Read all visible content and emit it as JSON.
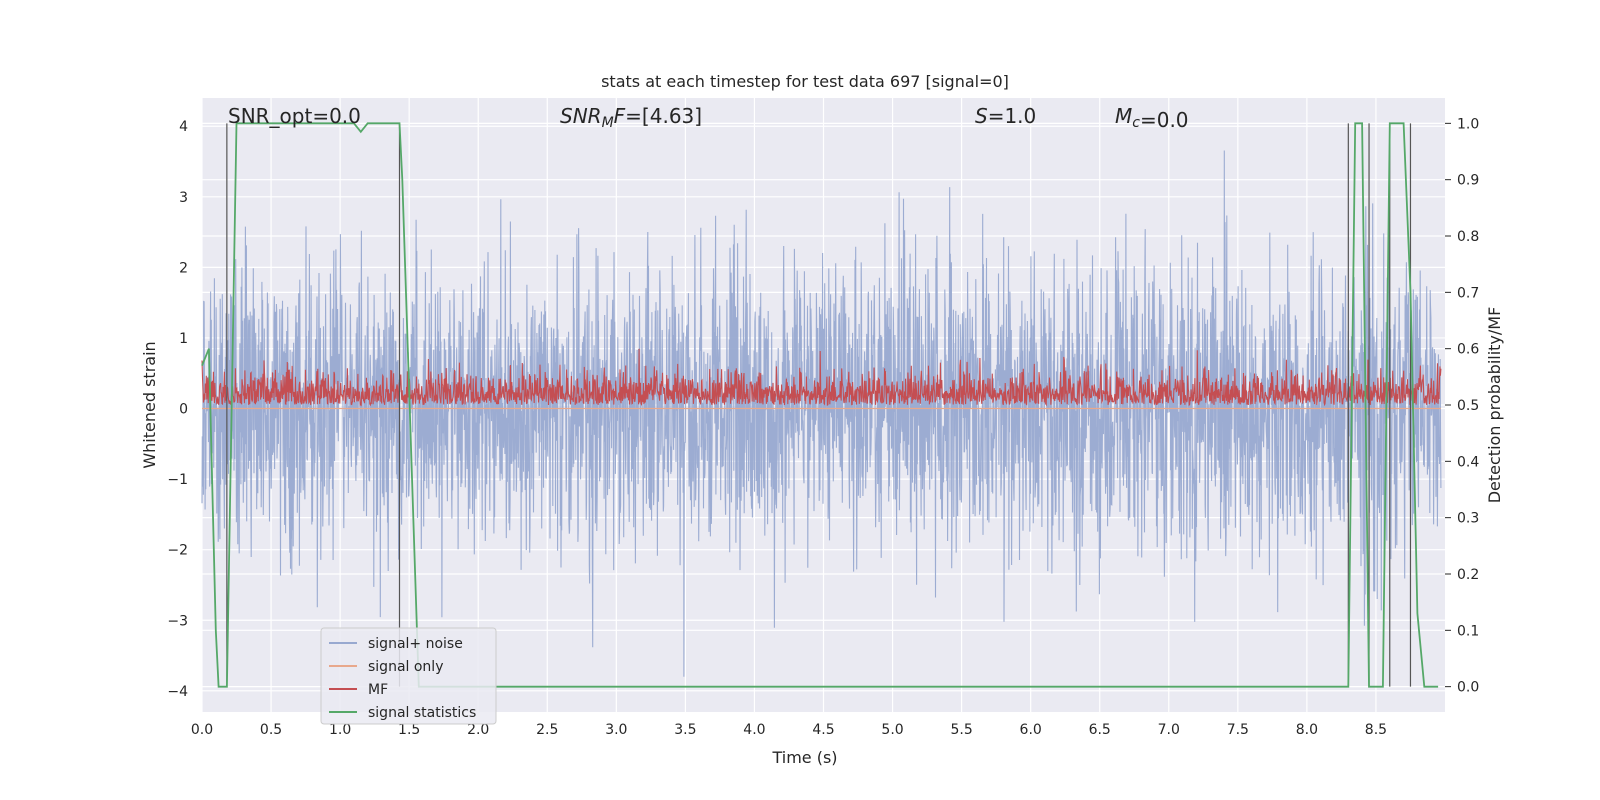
{
  "chart_data": {
    "type": "line",
    "title": "stats at each timestep for test data 697 [signal=0]",
    "xlabel": "Time (s)",
    "ylabel_left": "Whitened strain",
    "ylabel_right": "Detection probability/MF",
    "xlim": [
      0.0,
      9.0
    ],
    "ylim_left": [
      -4.3,
      4.4
    ],
    "ylim_right": [
      -0.045,
      1.045
    ],
    "x_ticks": [
      "0.0",
      "0.5",
      "1.0",
      "1.5",
      "2.0",
      "2.5",
      "3.0",
      "3.5",
      "4.0",
      "4.5",
      "5.0",
      "5.5",
      "6.0",
      "6.5",
      "7.0",
      "7.5",
      "8.0",
      "8.5"
    ],
    "y_left_ticks": [
      "4",
      "3",
      "2",
      "1",
      "0",
      "−1",
      "−2",
      "−3",
      "−4"
    ],
    "y_right_ticks": [
      "1.0",
      "0.9",
      "0.8",
      "0.7",
      "0.6",
      "0.5",
      "0.4",
      "0.3",
      "0.2",
      "0.1",
      "0.0"
    ],
    "grid": true,
    "legend_position": "lower-left",
    "annotations": [
      {
        "prefix": "SNR_opt",
        "value": "=0.0"
      },
      {
        "prefix": "SNR",
        "sub": "M",
        "suffix": "F",
        "value": "=[4.63]"
      },
      {
        "prefix": "S",
        "value": "=1.0"
      },
      {
        "prefix": "M",
        "sub": "c",
        "value": "=0.0"
      }
    ],
    "series": [
      {
        "name": "signal+ noise",
        "color": "#98a9d0",
        "axis": "left",
        "description_stats": {
          "amplitude_sigma": 1.0,
          "min": -3.8,
          "max": 4.0
        }
      },
      {
        "name": "signal only",
        "color": "#e8a88c",
        "axis": "left",
        "values": [
          0.0
        ]
      },
      {
        "name": "MF",
        "color": "#c44e52",
        "axis": "right",
        "baseline": 0.5,
        "max": 0.6
      },
      {
        "name": "signal statistics",
        "color": "#55a868",
        "axis": "right",
        "x": [
          0.0,
          0.05,
          0.1,
          0.12,
          0.18,
          0.25,
          1.1,
          1.15,
          1.2,
          1.43,
          1.45,
          1.57,
          8.3,
          8.35,
          8.4,
          8.45,
          8.55,
          8.6,
          8.65,
          8.7,
          8.75,
          8.8,
          8.85,
          8.9,
          8.95
        ],
        "y": [
          0.57,
          0.6,
          0.1,
          0.0,
          0.0,
          1.0,
          1.0,
          0.985,
          1.0,
          1.0,
          0.9,
          0.0,
          0.0,
          1.0,
          1.0,
          0.0,
          0.0,
          1.0,
          1.0,
          1.0,
          0.7,
          0.13,
          0.0,
          0.0,
          0.0
        ]
      }
    ],
    "vertical_markers_x": [
      0.18,
      1.43,
      8.3,
      8.45,
      8.6,
      8.75
    ]
  }
}
